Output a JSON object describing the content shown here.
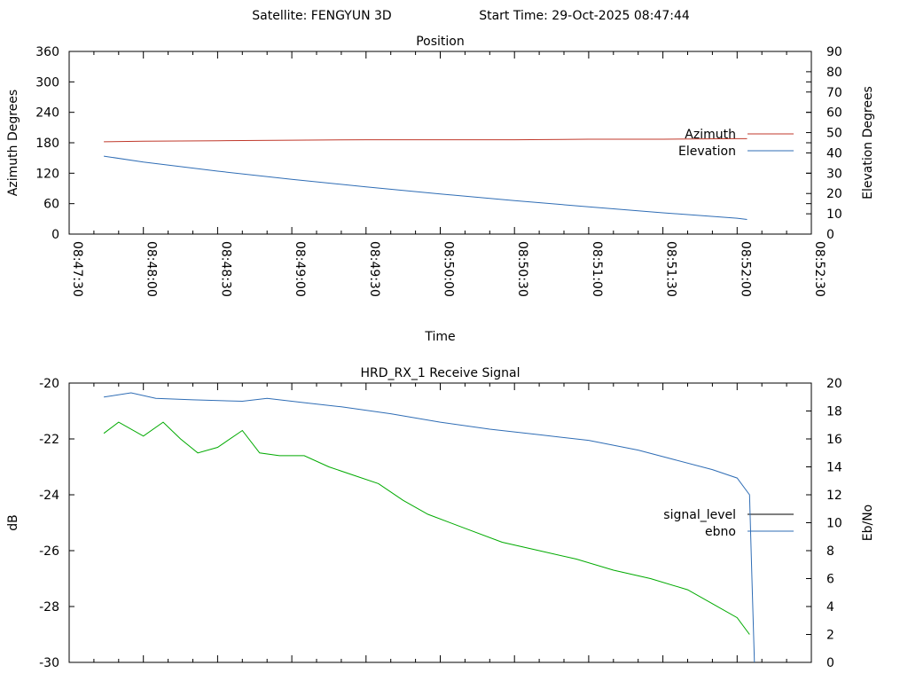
{
  "header": {
    "satellite": "Satellite: FENGYUN 3D",
    "start_time": "Start Time: 29-Oct-2025 08:47:44"
  },
  "chart_data": [
    {
      "type": "line",
      "title": "Position",
      "xlabel": "Time",
      "ylabel": "Azimuth Degrees",
      "y2label": "Elevation Degrees",
      "x_ticks": [
        "08:47:30",
        "08:48:00",
        "08:48:30",
        "08:49:00",
        "08:49:30",
        "08:50:00",
        "08:50:30",
        "08:51:00",
        "08:51:30",
        "08:52:00",
        "08:52:30"
      ],
      "xlim": [
        "08:47:30",
        "08:52:30"
      ],
      "ylim": [
        0,
        360
      ],
      "y_ticks": [
        "0",
        "60",
        "120",
        "180",
        "240",
        "300",
        "360"
      ],
      "y2lim": [
        0,
        90
      ],
      "y2_ticks": [
        "0",
        "10",
        "20",
        "30",
        "40",
        "50",
        "60",
        "70",
        "80",
        "90"
      ],
      "legend_position": "right",
      "series": [
        {
          "name": "Azimuth",
          "axis": "y",
          "color": "#c0392b",
          "x": [
            "08:47:44",
            "08:48:00",
            "08:48:30",
            "08:49:00",
            "08:49:30",
            "08:50:00",
            "08:50:30",
            "08:51:00",
            "08:51:30",
            "08:52:00",
            "08:52:04"
          ],
          "y": [
            182,
            183,
            184,
            185,
            186,
            186,
            186,
            187,
            187,
            188,
            188
          ]
        },
        {
          "name": "Elevation",
          "axis": "y2",
          "color": "#2f6db5",
          "x": [
            "08:47:44",
            "08:48:00",
            "08:48:30",
            "08:49:00",
            "08:49:30",
            "08:50:00",
            "08:50:30",
            "08:51:00",
            "08:51:30",
            "08:52:00",
            "08:52:04"
          ],
          "y": [
            38.4,
            35.5,
            31.0,
            27.0,
            23.3,
            19.8,
            16.5,
            13.4,
            10.5,
            7.8,
            7.2
          ]
        }
      ]
    },
    {
      "type": "line",
      "title": "HRD_RX_1 Receive Signal",
      "xlabel": "",
      "ylabel": "dB",
      "y2label": "Eb/No",
      "xlim": [
        "08:47:30",
        "08:52:30"
      ],
      "ylim": [
        -30,
        -20
      ],
      "y_ticks": [
        "-30",
        "-28",
        "-26",
        "-24",
        "-22",
        "-20"
      ],
      "y2lim": [
        0,
        20
      ],
      "y2_ticks": [
        "0",
        "2",
        "4",
        "6",
        "8",
        "10",
        "12",
        "14",
        "16",
        "18",
        "20"
      ],
      "legend_position": "right",
      "series": [
        {
          "name": "signal_level",
          "axis": "y",
          "color": "#00aa00",
          "legend_color": "#000000",
          "x": [
            "08:47:44",
            "08:47:50",
            "08:48:00",
            "08:48:08",
            "08:48:15",
            "08:48:22",
            "08:48:30",
            "08:48:40",
            "08:48:47",
            "08:48:55",
            "08:49:05",
            "08:49:15",
            "08:49:25",
            "08:49:35",
            "08:49:45",
            "08:49:55",
            "08:50:10",
            "08:50:25",
            "08:50:40",
            "08:50:55",
            "08:51:10",
            "08:51:25",
            "08:51:40",
            "08:51:50",
            "08:52:00",
            "08:52:05"
          ],
          "y": [
            -21.8,
            -21.4,
            -21.9,
            -21.4,
            -22.0,
            -22.5,
            -22.3,
            -21.7,
            -22.5,
            -22.6,
            -22.6,
            -23.0,
            -23.3,
            -23.6,
            -24.2,
            -24.7,
            -25.2,
            -25.7,
            -26.0,
            -26.3,
            -26.7,
            -27.0,
            -27.4,
            -27.9,
            -28.4,
            -29.0
          ]
        },
        {
          "name": "ebno",
          "axis": "y2",
          "color": "#2f6db5",
          "legend_color": "#2f6db5",
          "x": [
            "08:47:44",
            "08:47:55",
            "08:48:05",
            "08:48:20",
            "08:48:40",
            "08:48:50",
            "08:49:05",
            "08:49:20",
            "08:49:40",
            "08:50:00",
            "08:50:20",
            "08:50:40",
            "08:51:00",
            "08:51:20",
            "08:51:35",
            "08:51:50",
            "08:52:00",
            "08:52:05",
            "08:52:06",
            "08:52:07"
          ],
          "y": [
            19.0,
            19.3,
            18.9,
            18.8,
            18.7,
            18.9,
            18.6,
            18.3,
            17.8,
            17.2,
            16.7,
            16.3,
            15.9,
            15.2,
            14.5,
            13.8,
            13.2,
            12.0,
            6.0,
            0.0
          ]
        }
      ]
    }
  ]
}
